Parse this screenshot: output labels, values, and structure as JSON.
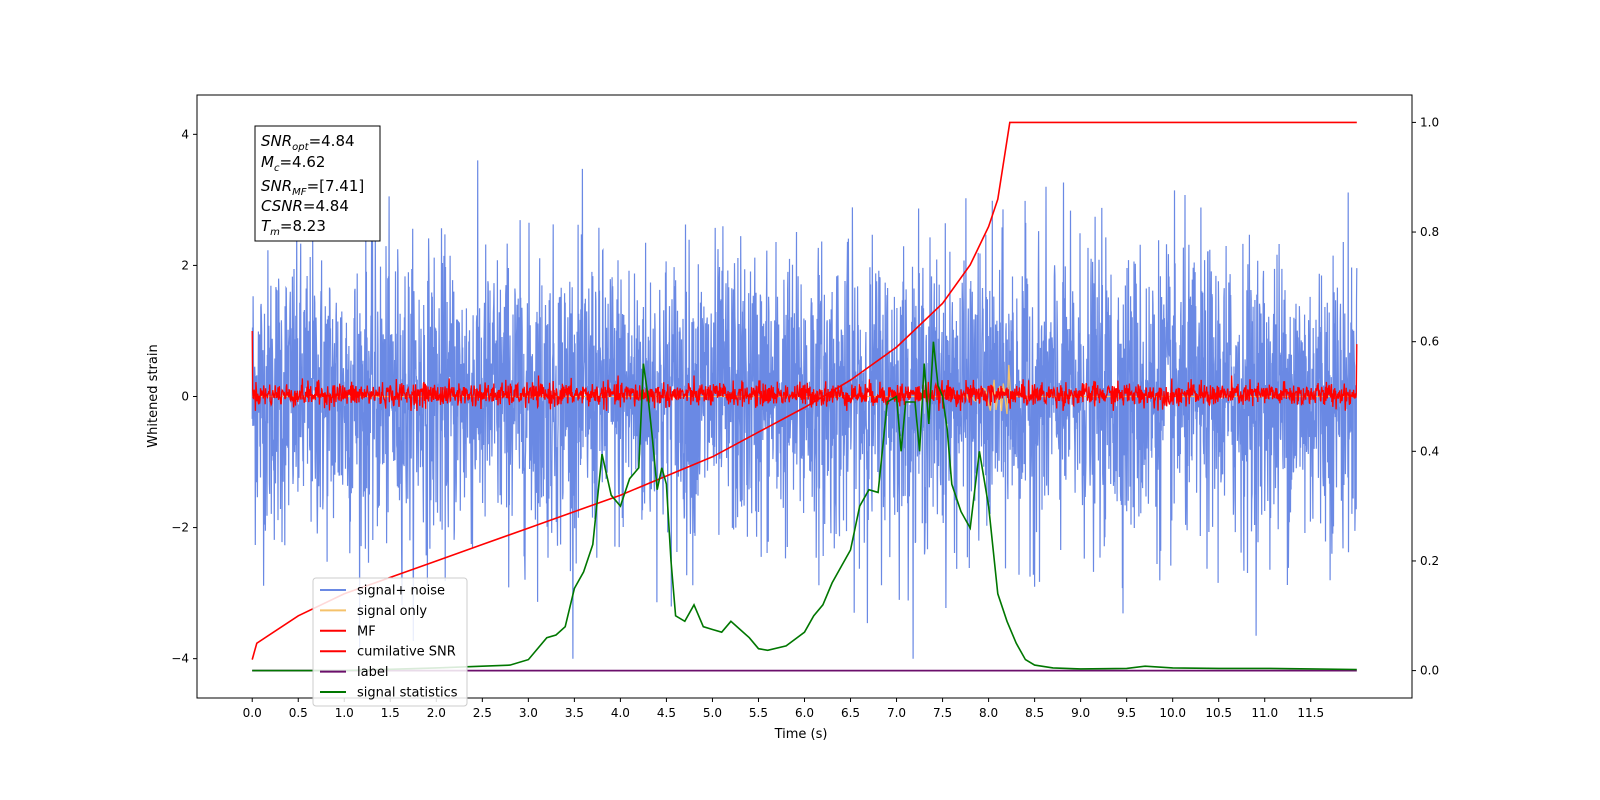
{
  "chart_data": {
    "type": "line",
    "title": "",
    "xlabel": "Time (s)",
    "ylabel": "Whitened strain",
    "xlim": [
      -0.6,
      12.6
    ],
    "ylim_left": [
      -4.6,
      4.6
    ],
    "ylim_right": [
      -0.05,
      1.05
    ],
    "grid": false,
    "legend_position": "lower-left",
    "x_ticks": [
      "0.0",
      "0.5",
      "1.0",
      "1.5",
      "2.0",
      "2.5",
      "3.0",
      "3.5",
      "4.0",
      "4.5",
      "5.0",
      "5.5",
      "6.0",
      "6.5",
      "7.0",
      "7.5",
      "8.0",
      "8.5",
      "9.0",
      "9.5",
      "10.0",
      "10.5",
      "11.0",
      "11.5"
    ],
    "y_ticks_left": [
      "4",
      "2",
      "0",
      "−2",
      "−4"
    ],
    "y_ticks_right": [
      "1.0",
      "0.8",
      "0.6",
      "0.4",
      "0.2",
      "0.0"
    ],
    "annotation": {
      "snr_opt": "=4.84",
      "mc": "=4.62",
      "snr_mf": "=[7.41]",
      "csnr": "=4.84",
      "tm": "=8.23"
    },
    "series": [
      {
        "name": "signal+ noise",
        "color": "#6a89e4",
        "axis": "left",
        "description": "noisy whitened strain, 0–12 s, amplitude roughly ±2.5 with peaks to ±4"
      },
      {
        "name": "signal only",
        "color": "#f5c26b",
        "axis": "left",
        "description": "chirp near 8.2 s, amplitude up to ~0.5"
      },
      {
        "name": "MF",
        "color": "#ff0000",
        "axis": "left",
        "description": "matched filter output, band roughly −0.2 to 0.3"
      },
      {
        "name": "cumilative SNR",
        "color": "#ff0000",
        "axis": "right",
        "x": [
          0.0,
          0.05,
          0.5,
          1.0,
          1.5,
          2.0,
          2.5,
          3.0,
          3.5,
          4.0,
          4.5,
          5.0,
          5.5,
          6.0,
          6.5,
          7.0,
          7.5,
          7.8,
          8.0,
          8.1,
          8.23,
          12.0
        ],
        "values": [
          0.02,
          0.05,
          0.1,
          0.14,
          0.17,
          0.2,
          0.23,
          0.26,
          0.29,
          0.32,
          0.355,
          0.39,
          0.435,
          0.48,
          0.53,
          0.59,
          0.67,
          0.74,
          0.81,
          0.86,
          1.0,
          1.0
        ]
      },
      {
        "name": "label",
        "color": "#6b0f6b",
        "axis": "right",
        "x": [
          0.0,
          12.0
        ],
        "values": [
          0.0,
          0.0
        ]
      },
      {
        "name": "signal statistics",
        "color": "#007700",
        "axis": "right",
        "x": [
          0.0,
          1.0,
          2.0,
          2.5,
          2.8,
          3.0,
          3.2,
          3.3,
          3.4,
          3.5,
          3.6,
          3.7,
          3.8,
          3.9,
          4.0,
          4.1,
          4.2,
          4.25,
          4.3,
          4.35,
          4.4,
          4.45,
          4.5,
          4.55,
          4.6,
          4.7,
          4.8,
          4.9,
          5.0,
          5.1,
          5.2,
          5.3,
          5.4,
          5.5,
          5.6,
          5.8,
          6.0,
          6.1,
          6.2,
          6.3,
          6.4,
          6.5,
          6.6,
          6.7,
          6.8,
          6.9,
          7.0,
          7.05,
          7.1,
          7.2,
          7.25,
          7.3,
          7.35,
          7.4,
          7.45,
          7.5,
          7.55,
          7.6,
          7.7,
          7.8,
          7.9,
          8.0,
          8.1,
          8.2,
          8.3,
          8.4,
          8.5,
          8.7,
          9.0,
          9.5,
          9.7,
          10.0,
          10.5,
          11.0,
          11.5,
          12.0
        ],
        "values": [
          0.0,
          0.0,
          0.005,
          0.008,
          0.01,
          0.02,
          0.06,
          0.065,
          0.08,
          0.15,
          0.18,
          0.23,
          0.395,
          0.32,
          0.3,
          0.35,
          0.37,
          0.56,
          0.5,
          0.42,
          0.33,
          0.37,
          0.34,
          0.2,
          0.1,
          0.09,
          0.12,
          0.08,
          0.075,
          0.07,
          0.09,
          0.075,
          0.06,
          0.04,
          0.037,
          0.045,
          0.07,
          0.1,
          0.12,
          0.16,
          0.19,
          0.22,
          0.3,
          0.33,
          0.325,
          0.49,
          0.5,
          0.4,
          0.49,
          0.49,
          0.4,
          0.56,
          0.45,
          0.6,
          0.52,
          0.5,
          0.44,
          0.34,
          0.29,
          0.26,
          0.4,
          0.3,
          0.14,
          0.09,
          0.05,
          0.02,
          0.01,
          0.005,
          0.003,
          0.004,
          0.008,
          0.005,
          0.004,
          0.004,
          0.003,
          0.002
        ]
      }
    ]
  }
}
